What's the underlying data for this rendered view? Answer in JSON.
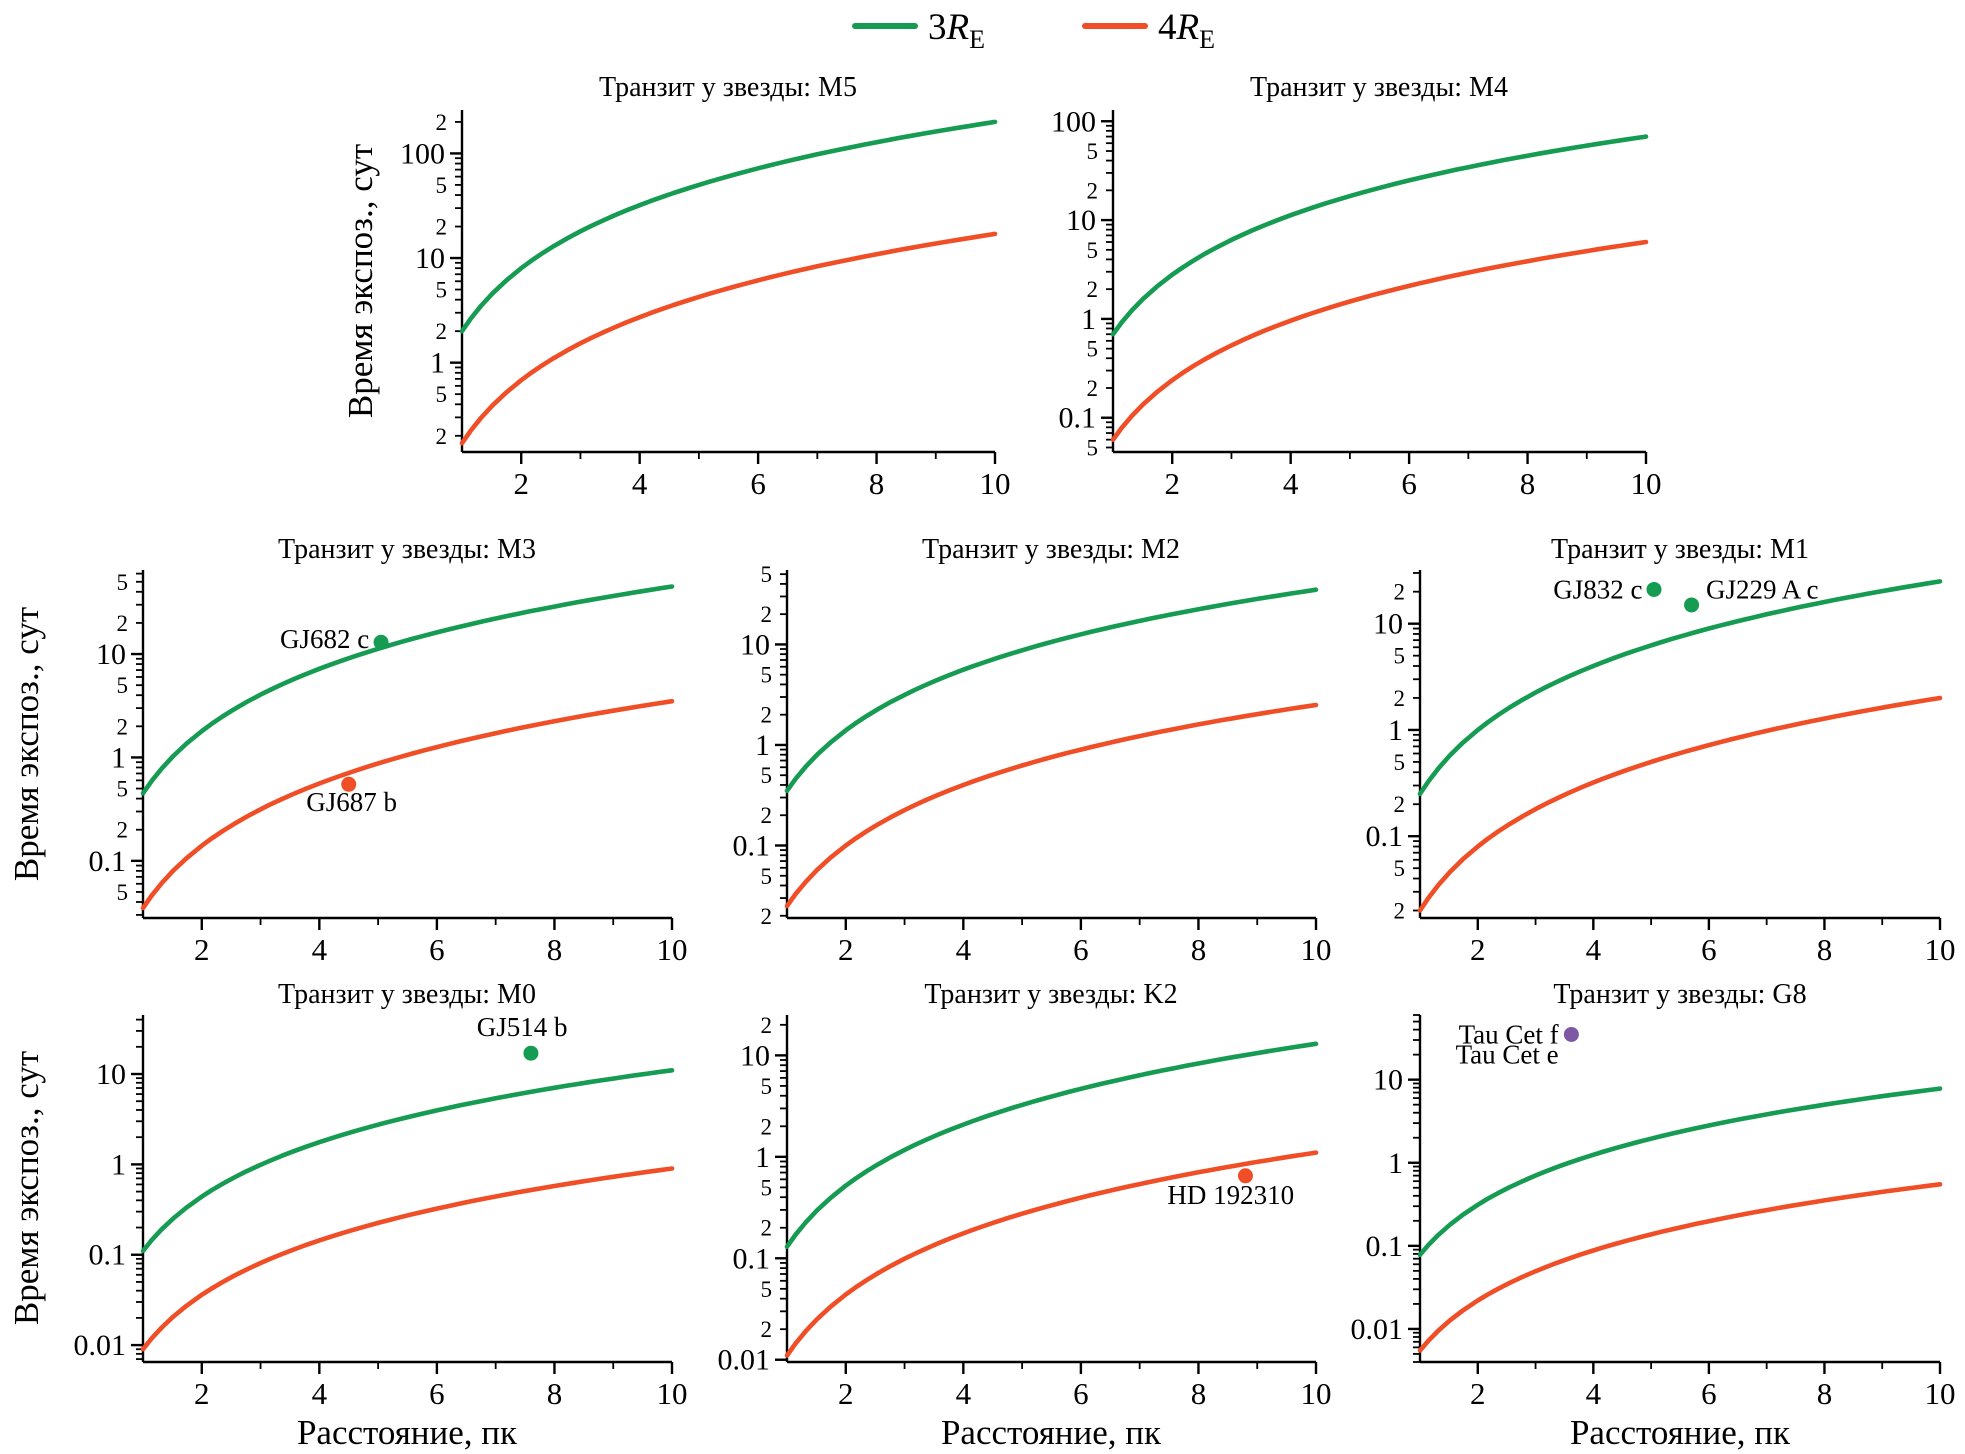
{
  "colors": {
    "green": "#169b53",
    "orange": "#f04e26",
    "purple": "#7e57a5",
    "axis": "#000000",
    "background": "#ffffff"
  },
  "legend": {
    "items": [
      {
        "prefix": "3",
        "symbol": "R",
        "subscript": "E",
        "color": "green"
      },
      {
        "prefix": "4",
        "symbol": "R",
        "subscript": "E",
        "color": "orange"
      }
    ]
  },
  "axis_labels": {
    "y": "Время экспоз., сут",
    "x": "Расстояние, пк"
  },
  "chart_data": [
    {
      "id": "M5",
      "type": "line",
      "title": "Транзит у звезды: M5",
      "xlabel": "Расстояние, пк",
      "ylabel": "Время экспоз., сут",
      "xlim": [
        1,
        10
      ],
      "xticks": [
        2,
        4,
        6,
        8,
        10
      ],
      "yscale": "log",
      "ylim": [
        0.14,
        260
      ],
      "minor_tick_labels": true,
      "grid": false,
      "x": [
        1,
        2,
        3,
        4,
        5,
        6,
        7,
        8,
        9,
        10
      ],
      "series": [
        {
          "name": "3RE",
          "color": "green",
          "values": [
            2,
            8,
            18,
            32,
            50,
            72,
            98,
            128,
            162,
            200
          ]
        },
        {
          "name": "4RE",
          "color": "orange",
          "values": [
            0.17,
            0.68,
            1.53,
            2.72,
            4.25,
            6.12,
            8.33,
            10.88,
            13.77,
            17
          ]
        }
      ],
      "points": [],
      "labels": []
    },
    {
      "id": "M4",
      "type": "line",
      "title": "Транзит у звезды: M4",
      "xlabel": "Расстояние, пк",
      "ylabel": "Время экспоз., сут",
      "xlim": [
        1,
        10
      ],
      "xticks": [
        2,
        4,
        6,
        8,
        10
      ],
      "yscale": "log",
      "ylim": [
        0.045,
        130
      ],
      "minor_tick_labels": true,
      "grid": false,
      "x": [
        1,
        2,
        3,
        4,
        5,
        6,
        7,
        8,
        9,
        10
      ],
      "series": [
        {
          "name": "3RE",
          "color": "green",
          "values": [
            0.7,
            2.8,
            6.3,
            11.2,
            17.5,
            25.2,
            34.3,
            44.8,
            56.7,
            70
          ]
        },
        {
          "name": "4RE",
          "color": "orange",
          "values": [
            0.06,
            0.24,
            0.54,
            0.96,
            1.5,
            2.16,
            2.94,
            3.84,
            4.86,
            6
          ]
        }
      ],
      "points": [],
      "labels": []
    },
    {
      "id": "M3",
      "type": "line",
      "title": "Транзит у звезды: M3",
      "xlabel": "Расстояние, пк",
      "ylabel": "Время экспоз., сут",
      "xlim": [
        1,
        10
      ],
      "xticks": [
        2,
        4,
        6,
        8,
        10
      ],
      "yscale": "log",
      "ylim": [
        0.028,
        65
      ],
      "minor_tick_labels": true,
      "grid": false,
      "x": [
        1,
        2,
        3,
        4,
        5,
        6,
        7,
        8,
        9,
        10
      ],
      "series": [
        {
          "name": "3RE",
          "color": "green",
          "values": [
            0.45,
            1.8,
            4.05,
            7.2,
            11.25,
            16.2,
            22.05,
            28.8,
            36.45,
            45
          ]
        },
        {
          "name": "4RE",
          "color": "orange",
          "values": [
            0.035,
            0.14,
            0.315,
            0.56,
            0.875,
            1.26,
            1.715,
            2.24,
            2.835,
            3.5
          ]
        }
      ],
      "points": [
        {
          "x": 5.05,
          "y": 13,
          "color": "green"
        },
        {
          "x": 4.5,
          "y": 0.55,
          "color": "orange"
        }
      ],
      "labels": [
        {
          "text": "GJ682 c",
          "x": 4.85,
          "y": 14,
          "anchor": "end"
        },
        {
          "text": "GJ687 b",
          "x": 4.55,
          "y": 0.37,
          "anchor": "middle"
        }
      ]
    },
    {
      "id": "M2",
      "type": "line",
      "title": "Транзит у звезды: M2",
      "xlabel": "Расстояние, пк",
      "ylabel": "Время экспоз., сут",
      "xlim": [
        1,
        10
      ],
      "xticks": [
        2,
        4,
        6,
        8,
        10
      ],
      "yscale": "log",
      "ylim": [
        0.019,
        55
      ],
      "minor_tick_labels": true,
      "grid": false,
      "x": [
        1,
        2,
        3,
        4,
        5,
        6,
        7,
        8,
        9,
        10
      ],
      "series": [
        {
          "name": "3RE",
          "color": "green",
          "values": [
            0.35,
            1.4,
            3.15,
            5.6,
            8.75,
            12.6,
            17.15,
            22.4,
            28.35,
            35
          ]
        },
        {
          "name": "4RE",
          "color": "orange",
          "values": [
            0.025,
            0.1,
            0.225,
            0.4,
            0.625,
            0.9,
            1.225,
            1.6,
            2.025,
            2.5
          ]
        }
      ],
      "points": [],
      "labels": []
    },
    {
      "id": "M1",
      "type": "line",
      "title": "Транзит у звезды: M1",
      "xlabel": "Расстояние, пк",
      "ylabel": "Время экспоз., сут",
      "xlim": [
        1,
        10
      ],
      "xticks": [
        2,
        4,
        6,
        8,
        10
      ],
      "yscale": "log",
      "ylim": [
        0.017,
        32
      ],
      "minor_tick_labels": true,
      "grid": false,
      "x": [
        1,
        2,
        3,
        4,
        5,
        6,
        7,
        8,
        9,
        10
      ],
      "series": [
        {
          "name": "3RE",
          "color": "green",
          "values": [
            0.25,
            1,
            2.25,
            4,
            6.25,
            9,
            12.25,
            16,
            20.25,
            25
          ]
        },
        {
          "name": "4RE",
          "color": "orange",
          "values": [
            0.02,
            0.08,
            0.18,
            0.32,
            0.5,
            0.72,
            0.98,
            1.28,
            1.62,
            2
          ]
        }
      ],
      "points": [
        {
          "x": 5.05,
          "y": 21,
          "color": "green"
        },
        {
          "x": 5.7,
          "y": 15,
          "color": "green"
        }
      ],
      "labels": [
        {
          "text": "GJ832 c",
          "x": 4.85,
          "y": 21,
          "anchor": "end"
        },
        {
          "text": "GJ229 A c",
          "x": 5.95,
          "y": 21,
          "anchor": "start"
        }
      ]
    },
    {
      "id": "M0",
      "type": "line",
      "title": "Транзит у звезды: M0",
      "xlabel": "Расстояние, пк",
      "ylabel": "Время экспоз., сут",
      "xlim": [
        1,
        10
      ],
      "xticks": [
        2,
        4,
        6,
        8,
        10
      ],
      "yscale": "log",
      "ylim": [
        0.0065,
        45
      ],
      "minor_tick_labels": false,
      "grid": false,
      "x": [
        1,
        2,
        3,
        4,
        5,
        6,
        7,
        8,
        9,
        10
      ],
      "series": [
        {
          "name": "3RE",
          "color": "green",
          "values": [
            0.11,
            0.44,
            0.99,
            1.76,
            2.75,
            3.96,
            5.39,
            7.04,
            8.91,
            11
          ]
        },
        {
          "name": "4RE",
          "color": "orange",
          "values": [
            0.009,
            0.036,
            0.081,
            0.144,
            0.225,
            0.324,
            0.441,
            0.576,
            0.729,
            0.9
          ]
        }
      ],
      "points": [
        {
          "x": 7.6,
          "y": 17,
          "color": "green"
        }
      ],
      "labels": [
        {
          "text": "GJ514 b",
          "x": 7.45,
          "y": 33,
          "anchor": "middle"
        }
      ]
    },
    {
      "id": "K2",
      "type": "line",
      "title": "Транзит у звезды: K2",
      "xlabel": "Расстояние, пк",
      "ylabel": "Время экспоз., сут",
      "xlim": [
        1,
        10
      ],
      "xticks": [
        2,
        4,
        6,
        8,
        10
      ],
      "yscale": "log",
      "ylim": [
        0.0095,
        25
      ],
      "minor_tick_labels": true,
      "grid": false,
      "x": [
        1,
        2,
        3,
        4,
        5,
        6,
        7,
        8,
        9,
        10
      ],
      "series": [
        {
          "name": "3RE",
          "color": "green",
          "values": [
            0.13,
            0.52,
            1.17,
            2.08,
            3.25,
            4.68,
            6.37,
            8.32,
            10.53,
            13
          ]
        },
        {
          "name": "4RE",
          "color": "orange",
          "values": [
            0.011,
            0.044,
            0.099,
            0.176,
            0.275,
            0.396,
            0.539,
            0.704,
            0.891,
            1.1
          ]
        }
      ],
      "points": [
        {
          "x": 8.8,
          "y": 0.65,
          "color": "orange"
        }
      ],
      "labels": [
        {
          "text": "HD 192310",
          "x": 8.55,
          "y": 0.42,
          "anchor": "middle"
        }
      ]
    },
    {
      "id": "G8",
      "type": "line",
      "title": "Транзит у звезды: G8",
      "xlabel": "Расстояние, пк",
      "ylabel": "Время экспоз., сут",
      "xlim": [
        1,
        10
      ],
      "xticks": [
        2,
        4,
        6,
        8,
        10
      ],
      "yscale": "log",
      "ylim": [
        0.004,
        60
      ],
      "minor_tick_labels": false,
      "grid": false,
      "x": [
        1,
        2,
        3,
        4,
        5,
        6,
        7,
        8,
        9,
        10
      ],
      "series": [
        {
          "name": "3RE",
          "color": "green",
          "values": [
            0.078,
            0.312,
            0.702,
            1.248,
            1.95,
            2.808,
            3.822,
            4.992,
            6.318,
            7.8
          ]
        },
        {
          "name": "4RE",
          "color": "orange",
          "values": [
            0.0055,
            0.022,
            0.0495,
            0.088,
            0.1375,
            0.198,
            0.2695,
            0.352,
            0.4455,
            0.55
          ]
        }
      ],
      "points": [
        {
          "x": 3.62,
          "y": 35,
          "color": "purple"
        }
      ],
      "labels": [
        {
          "text": "Tau Cet f",
          "x": 3.4,
          "y": 35,
          "anchor": "end"
        },
        {
          "text": "Tau Cet e",
          "x": 3.4,
          "y": 20,
          "anchor": "end"
        }
      ]
    }
  ]
}
